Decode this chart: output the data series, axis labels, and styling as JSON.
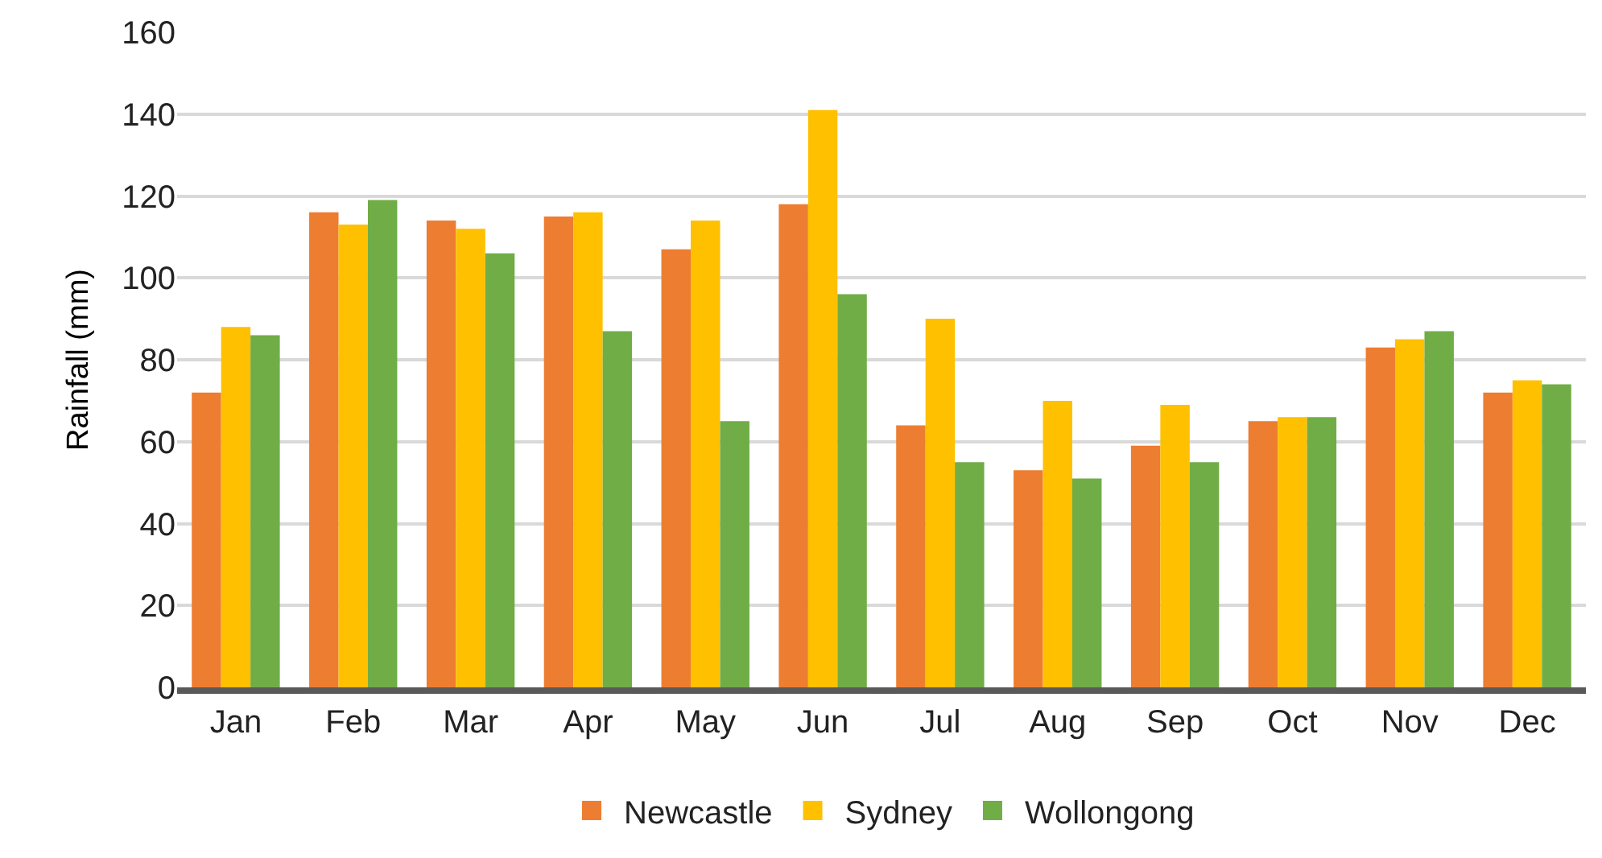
{
  "chart_data": {
    "type": "bar",
    "ylabel": "Rainfall (mm)",
    "categories": [
      "Jan",
      "Feb",
      "Mar",
      "Apr",
      "May",
      "Jun",
      "Jul",
      "Aug",
      "Sep",
      "Oct",
      "Nov",
      "Dec"
    ],
    "series": [
      {
        "name": "Newcastle",
        "color": "#ed7d31",
        "values": [
          72,
          116,
          114,
          115,
          107,
          118,
          64,
          53,
          59,
          65,
          83,
          72
        ]
      },
      {
        "name": "Sydney",
        "color": "#ffc000",
        "values": [
          88,
          113,
          112,
          116,
          114,
          141,
          90,
          70,
          69,
          66,
          85,
          75
        ]
      },
      {
        "name": "Wollongong",
        "color": "#70ad47",
        "values": [
          86,
          119,
          106,
          87,
          65,
          96,
          55,
          51,
          55,
          66,
          87,
          74
        ]
      }
    ],
    "ylim": [
      0,
      160
    ],
    "yticks": [
      0,
      20,
      40,
      60,
      80,
      100,
      120,
      140,
      160
    ],
    "grid": "y",
    "legend": "bottom"
  }
}
